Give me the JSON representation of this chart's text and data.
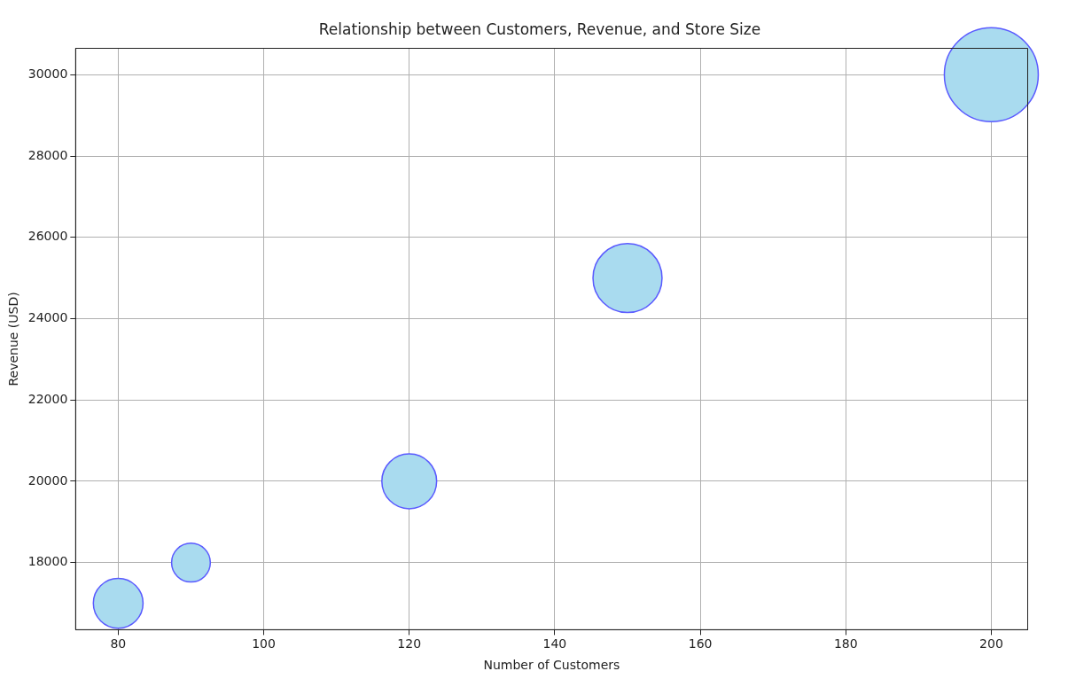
{
  "chart_data": {
    "type": "bubble",
    "title": "Relationship between Customers, Revenue, and Store Size",
    "xlabel": "Number of Customers",
    "ylabel": "Revenue (USD)",
    "x": [
      80,
      90,
      120,
      150,
      200
    ],
    "values": [
      17000,
      18000,
      20000,
      25000,
      30000
    ],
    "sizes": [
      0.28,
      0.17,
      0.34,
      0.54,
      1
    ],
    "color": "#a9dbef",
    "xlim": [
      74.15,
      205
    ],
    "xticks": [
      80,
      100,
      120,
      140,
      160,
      180,
      200
    ],
    "ylim": [
      16350,
      30650
    ],
    "yticks": [
      18000,
      20000,
      22000,
      24000,
      26000,
      28000,
      30000
    ],
    "grid": true,
    "legend": false
  }
}
